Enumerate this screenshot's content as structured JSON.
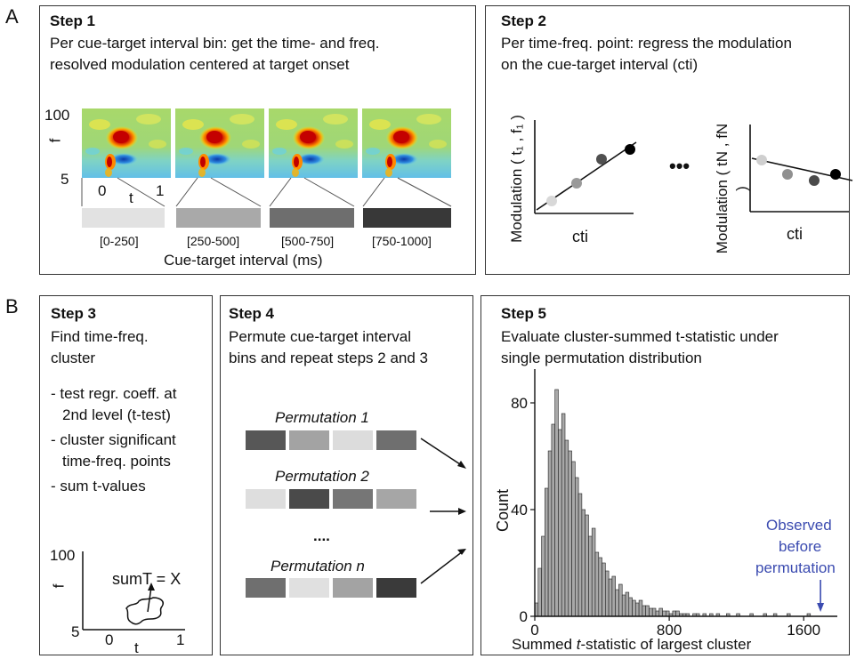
{
  "panels": {
    "a": "A",
    "b": "B"
  },
  "step1": {
    "title": "Step 1",
    "desc_line1": "Per cue-target interval bin: get the time- and freq.",
    "desc_line2": "resolved modulation centered at target onset",
    "y_top": "100",
    "y_label": "f",
    "y_bottom": "5",
    "x_left": "0",
    "x_label": "t",
    "x_right": "1",
    "bins": [
      "[0-250]",
      "[250-500]",
      "[500-750]",
      "[750-1000]"
    ],
    "bin_colors": [
      "#e2e2e2",
      "#a9a9a9",
      "#6e6e6e",
      "#383838"
    ],
    "xaxis_label": "Cue-target interval (ms)"
  },
  "step2": {
    "title": "Step 2",
    "desc_line1": "Per time-freq. point: regress the modulation",
    "desc_line2": "on the cue-target interval (cti)",
    "ylabel1": "Modulation ( t₁ , f₁ )",
    "ylabel2": "Modulation ( tN , fN )",
    "xlabel": "cti",
    "ellipsis": "•••"
  },
  "step3": {
    "title": "Step 3",
    "desc_line1": "Find time-freq.",
    "desc_line2": "cluster",
    "bullets": [
      [
        "- test regr. coeff. at",
        "2nd level (t-test)"
      ],
      [
        "- cluster significant",
        "time-freq. points"
      ],
      [
        "- sum t-values"
      ]
    ],
    "y_top": "100",
    "y_label": "f",
    "y_bottom": "5",
    "x_left": "0",
    "x_label": "t",
    "x_right": "1",
    "sum_label": "sumT = X"
  },
  "step4": {
    "title": "Step 4",
    "desc_line1": "Permute cue-target interval",
    "desc_line2": "bins and repeat steps 2 and 3",
    "perms": [
      {
        "label": "Permutation 1",
        "colors": [
          "#575757",
          "#a3a3a3",
          "#dcdcdc",
          "#6f6f6f"
        ]
      },
      {
        "label": "Permutation 2",
        "colors": [
          "#dedede",
          "#4a4a4a",
          "#767676",
          "#a6a6a6"
        ]
      },
      {
        "label": "Permutation n",
        "colors": [
          "#6f6f6f",
          "#e0e0e0",
          "#a3a3a3",
          "#3a3a3a"
        ]
      }
    ],
    "dots": "...."
  },
  "step5": {
    "title": "Step 5",
    "desc_line1": "Evaluate cluster-summed t-statistic under",
    "desc_line2": "single permutation distribution",
    "observed": [
      "Observed",
      "before",
      "permutation"
    ],
    "observed_color": "#3b4bb0"
  },
  "chart_data": {
    "type": "bar",
    "xlabel": "Summed t-statistic of largest cluster",
    "ylabel": "Count",
    "xlim": [
      0,
      1800
    ],
    "ylim": [
      0,
      90
    ],
    "xticks": [
      0,
      800,
      1600
    ],
    "yticks": [
      0,
      40,
      80
    ],
    "bin_width": 20,
    "bin_starts": [
      0,
      20,
      40,
      60,
      80,
      100,
      120,
      140,
      160,
      180,
      200,
      220,
      240,
      260,
      280,
      300,
      320,
      340,
      360,
      380,
      400,
      420,
      440,
      460,
      480,
      500,
      520,
      540,
      560,
      580,
      600,
      620,
      640,
      660,
      680,
      700,
      720,
      740,
      760,
      780,
      800,
      820,
      840,
      860,
      880,
      900,
      920,
      940,
      960,
      980,
      1000,
      1020,
      1040,
      1060,
      1080,
      1100,
      1120,
      1140,
      1160,
      1180,
      1200,
      1220,
      1240,
      1260,
      1280,
      1300,
      1320,
      1340,
      1360,
      1380,
      1400,
      1420,
      1440,
      1460,
      1480,
      1500,
      1520,
      1540,
      1560,
      1580,
      1600,
      1620,
      1640,
      1660,
      1680,
      1700
    ],
    "values": [
      5,
      18,
      30,
      48,
      62,
      72,
      85,
      70,
      76,
      66,
      62,
      58,
      52,
      46,
      40,
      38,
      30,
      33,
      24,
      22,
      20,
      17,
      14,
      15,
      10,
      12,
      8,
      9,
      7,
      6,
      5,
      6,
      4,
      4,
      3,
      3,
      2,
      3,
      2,
      2,
      1,
      2,
      2,
      1,
      1,
      1,
      0,
      1,
      1,
      0,
      1,
      0,
      1,
      0,
      1,
      0,
      0,
      1,
      0,
      0,
      1,
      0,
      0,
      0,
      1,
      0,
      0,
      0,
      1,
      0,
      0,
      1,
      0,
      0,
      0,
      1,
      0,
      0,
      0,
      0,
      0,
      1,
      0,
      0,
      0,
      0
    ],
    "observed_value": 1700
  }
}
